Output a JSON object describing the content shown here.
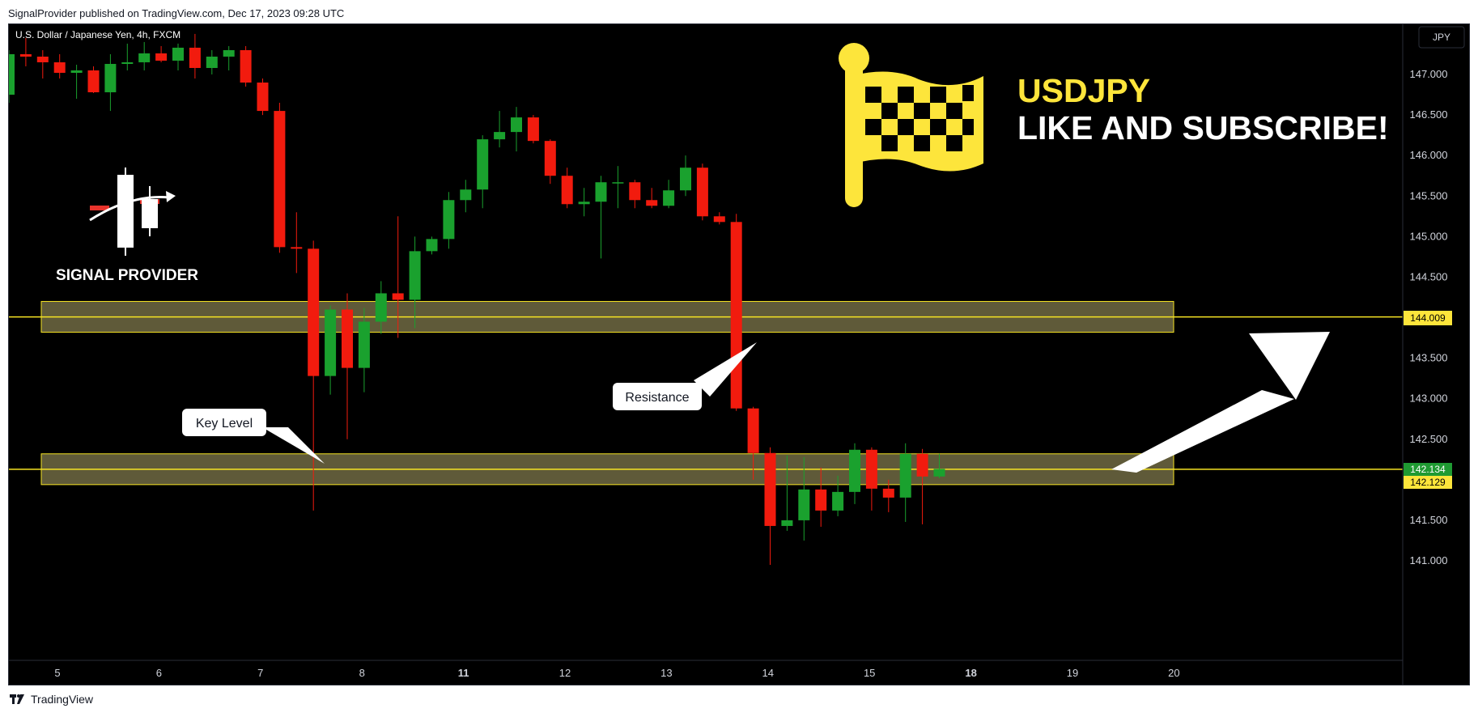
{
  "header": {
    "caption": "SignalProvider published on TradingView.com, Dec 17, 2023 09:28 UTC"
  },
  "footer": {
    "brand": "TradingView"
  },
  "symbol_info": "U.S. Dollar / Japanese Yen, 4h, FXCM",
  "currency_button": "JPY",
  "promo": {
    "ticker": "USDJPY",
    "cta": "LIKE AND SUBSCRIBE!"
  },
  "logo_text": "SIGNAL PROVIDER",
  "annotations": {
    "key_level": "Key Level",
    "resistance": "Resistance"
  },
  "price_badges": {
    "resistance_level": "144.009",
    "last_price": "142.134",
    "key_level": "142.129"
  },
  "colors": {
    "bull": "#1aa12e",
    "bear": "#f21b0e",
    "zone_fill": "#5f5a39",
    "zone_border": "#f5e323",
    "accent_yellow": "#fde53b",
    "last_price_badge": "#1f9a32",
    "background": "#000000"
  },
  "chart_data": {
    "type": "candlestick",
    "title": "",
    "ylim": [
      140.95,
      147.45
    ],
    "y_ticks": [
      "147.000",
      "146.500",
      "146.000",
      "145.500",
      "145.000",
      "144.500",
      "143.500",
      "143.000",
      "142.500",
      "141.500",
      "141.000"
    ],
    "x_ticks": [
      {
        "label": "5",
        "idx": 2.2,
        "bold": false
      },
      {
        "label": "6",
        "idx": 8.2,
        "bold": false
      },
      {
        "label": "7",
        "idx": 14.2,
        "bold": false
      },
      {
        "label": "8",
        "idx": 20.2,
        "bold": false
      },
      {
        "label": "11",
        "idx": 26.2,
        "bold": true
      },
      {
        "label": "12",
        "idx": 32.2,
        "bold": false
      },
      {
        "label": "13",
        "idx": 38.2,
        "bold": false
      },
      {
        "label": "14",
        "idx": 44.2,
        "bold": false
      },
      {
        "label": "15",
        "idx": 50.2,
        "bold": false
      },
      {
        "label": "18",
        "idx": 56.2,
        "bold": true
      },
      {
        "label": "19",
        "idx": 62.2,
        "bold": false
      },
      {
        "label": "20",
        "idx": 68.2,
        "bold": false
      }
    ],
    "zones": [
      {
        "top": 144.2,
        "bottom": 143.82,
        "line": 144.009
      },
      {
        "top": 142.32,
        "bottom": 141.94,
        "line": 142.129
      }
    ],
    "candles": [
      {
        "o": 146.75,
        "h": 147.3,
        "l": 146.65,
        "c": 147.25
      },
      {
        "o": 147.25,
        "h": 147.45,
        "l": 147.1,
        "c": 147.22
      },
      {
        "o": 147.22,
        "h": 147.3,
        "l": 146.95,
        "c": 147.15
      },
      {
        "o": 147.15,
        "h": 147.25,
        "l": 146.95,
        "c": 147.02
      },
      {
        "o": 147.02,
        "h": 147.12,
        "l": 146.7,
        "c": 147.05
      },
      {
        "o": 147.05,
        "h": 147.1,
        "l": 146.77,
        "c": 146.78
      },
      {
        "o": 146.78,
        "h": 147.25,
        "l": 146.55,
        "c": 147.13
      },
      {
        "o": 147.13,
        "h": 147.38,
        "l": 147.05,
        "c": 147.15
      },
      {
        "o": 147.15,
        "h": 147.4,
        "l": 147.05,
        "c": 147.26
      },
      {
        "o": 147.26,
        "h": 147.35,
        "l": 147.15,
        "c": 147.17
      },
      {
        "o": 147.17,
        "h": 147.38,
        "l": 147.05,
        "c": 147.33
      },
      {
        "o": 147.33,
        "h": 147.5,
        "l": 146.95,
        "c": 147.08
      },
      {
        "o": 147.08,
        "h": 147.3,
        "l": 147.0,
        "c": 147.22
      },
      {
        "o": 147.22,
        "h": 147.35,
        "l": 147.05,
        "c": 147.3
      },
      {
        "o": 147.3,
        "h": 147.35,
        "l": 146.85,
        "c": 146.9
      },
      {
        "o": 146.9,
        "h": 146.95,
        "l": 146.5,
        "c": 146.55
      },
      {
        "o": 146.55,
        "h": 146.65,
        "l": 144.8,
        "c": 144.87
      },
      {
        "o": 144.87,
        "h": 145.3,
        "l": 144.55,
        "c": 144.85
      },
      {
        "o": 144.85,
        "h": 144.95,
        "l": 141.62,
        "c": 143.28
      },
      {
        "o": 143.28,
        "h": 144.15,
        "l": 143.05,
        "c": 144.1
      },
      {
        "o": 144.1,
        "h": 144.3,
        "l": 142.5,
        "c": 143.38
      },
      {
        "o": 143.38,
        "h": 144.12,
        "l": 143.08,
        "c": 143.95
      },
      {
        "o": 143.95,
        "h": 144.45,
        "l": 143.8,
        "c": 144.3
      },
      {
        "o": 144.3,
        "h": 145.25,
        "l": 143.75,
        "c": 144.22
      },
      {
        "o": 144.22,
        "h": 145.0,
        "l": 143.87,
        "c": 144.82
      },
      {
        "o": 144.82,
        "h": 145.0,
        "l": 144.78,
        "c": 144.97
      },
      {
        "o": 144.97,
        "h": 145.55,
        "l": 144.85,
        "c": 145.45
      },
      {
        "o": 145.45,
        "h": 145.7,
        "l": 145.3,
        "c": 145.58
      },
      {
        "o": 145.58,
        "h": 146.25,
        "l": 145.35,
        "c": 146.2
      },
      {
        "o": 146.2,
        "h": 146.55,
        "l": 146.1,
        "c": 146.29
      },
      {
        "o": 146.29,
        "h": 146.6,
        "l": 146.05,
        "c": 146.47
      },
      {
        "o": 146.47,
        "h": 146.5,
        "l": 146.15,
        "c": 146.18
      },
      {
        "o": 146.18,
        "h": 146.2,
        "l": 145.65,
        "c": 145.75
      },
      {
        "o": 145.75,
        "h": 145.85,
        "l": 145.35,
        "c": 145.4
      },
      {
        "o": 145.4,
        "h": 145.6,
        "l": 145.25,
        "c": 145.43
      },
      {
        "o": 145.43,
        "h": 145.75,
        "l": 144.73,
        "c": 145.67
      },
      {
        "o": 145.67,
        "h": 145.87,
        "l": 145.35,
        "c": 145.67
      },
      {
        "o": 145.67,
        "h": 145.7,
        "l": 145.35,
        "c": 145.45
      },
      {
        "o": 145.45,
        "h": 145.6,
        "l": 145.35,
        "c": 145.38
      },
      {
        "o": 145.38,
        "h": 145.7,
        "l": 145.35,
        "c": 145.57
      },
      {
        "o": 145.57,
        "h": 146.0,
        "l": 145.5,
        "c": 145.85
      },
      {
        "o": 145.85,
        "h": 145.9,
        "l": 145.2,
        "c": 145.25
      },
      {
        "o": 145.25,
        "h": 145.3,
        "l": 145.15,
        "c": 145.18
      },
      {
        "o": 145.18,
        "h": 145.28,
        "l": 142.85,
        "c": 142.88
      },
      {
        "o": 142.88,
        "h": 142.9,
        "l": 142.0,
        "c": 142.33
      },
      {
        "o": 142.33,
        "h": 142.4,
        "l": 140.95,
        "c": 141.43
      },
      {
        "o": 141.43,
        "h": 142.3,
        "l": 141.37,
        "c": 141.5
      },
      {
        "o": 141.5,
        "h": 142.28,
        "l": 141.25,
        "c": 141.88
      },
      {
        "o": 141.88,
        "h": 142.15,
        "l": 141.42,
        "c": 141.62
      },
      {
        "o": 141.62,
        "h": 142.05,
        "l": 141.55,
        "c": 141.85
      },
      {
        "o": 141.85,
        "h": 142.45,
        "l": 141.7,
        "c": 142.37
      },
      {
        "o": 142.37,
        "h": 142.4,
        "l": 141.62,
        "c": 141.89
      },
      {
        "o": 141.89,
        "h": 142.0,
        "l": 141.6,
        "c": 141.78
      },
      {
        "o": 141.78,
        "h": 142.45,
        "l": 141.48,
        "c": 142.32
      },
      {
        "o": 142.32,
        "h": 142.38,
        "l": 141.45,
        "c": 142.04
      },
      {
        "o": 142.04,
        "h": 142.32,
        "l": 142.02,
        "c": 142.134
      }
    ]
  }
}
